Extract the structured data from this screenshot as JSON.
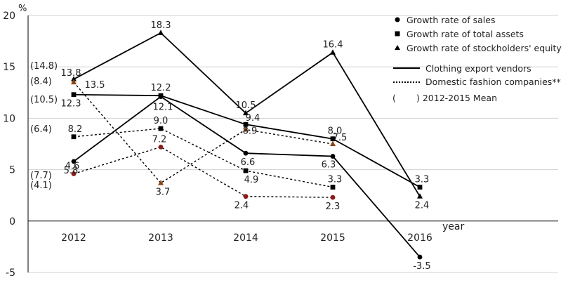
{
  "chart_data": {
    "type": "line",
    "unit_label": "%",
    "xlabel": "year",
    "x": [
      "2012",
      "2013",
      "2014",
      "2015",
      "2016"
    ],
    "ylim": [
      -5,
      20
    ],
    "yticks": [
      "20",
      "15",
      "10",
      "5",
      "0",
      "-5"
    ],
    "grid": true,
    "legend_position": "top-right",
    "markers": [
      {
        "symbol": "circle",
        "label": "Growth rate of sales"
      },
      {
        "symbol": "square",
        "label": "Growth rate of total assets"
      },
      {
        "symbol": "triangle",
        "label": "Growth rate of stockholders' equity"
      }
    ],
    "line_styles": [
      {
        "style": "solid",
        "label": "Clothing export vendors"
      },
      {
        "style": "dotted",
        "label": "Domestic fashion companies**"
      }
    ],
    "mean_note": {
      "open": "(",
      "close": ") 2012-2015 Mean"
    },
    "series": [
      {
        "group": "Clothing export vendors",
        "metric": "Growth rate of sales",
        "marker": "circle",
        "style": "solid",
        "color": "#000000",
        "values": [
          5.8,
          12.1,
          6.6,
          6.3,
          -3.5
        ],
        "labels": [
          "5.8",
          "12.1",
          "6.6",
          "6.3",
          "-3.5"
        ]
      },
      {
        "group": "Clothing export vendors",
        "metric": "Growth rate of total assets",
        "marker": "square",
        "style": "solid",
        "color": "#000000",
        "values": [
          12.3,
          12.2,
          9.4,
          8.0,
          3.3
        ],
        "labels": [
          "12.3",
          "12.2",
          "9.4",
          "8.0",
          "3.3"
        ]
      },
      {
        "group": "Clothing export vendors",
        "metric": "Growth rate of stockholders' equity",
        "marker": "triangle",
        "style": "solid",
        "color": "#000000",
        "values": [
          13.8,
          18.3,
          10.5,
          16.4,
          2.4
        ],
        "labels": [
          "13.8",
          "18.3",
          "10.5",
          "16.4",
          "2.4"
        ]
      },
      {
        "group": "Domestic fashion companies",
        "metric": "Growth rate of sales",
        "marker": "circle",
        "style": "dotted",
        "color": "#8b1a1a",
        "values": [
          4.6,
          7.2,
          2.4,
          2.3,
          null
        ],
        "labels": [
          "4.6",
          "7.2",
          "2.4",
          "2.3",
          ""
        ]
      },
      {
        "group": "Domestic fashion companies",
        "metric": "Growth rate of total assets",
        "marker": "square",
        "style": "dotted",
        "color": "#000000",
        "values": [
          8.2,
          9.0,
          4.9,
          3.3,
          null
        ],
        "labels": [
          "8.2",
          "9.0",
          "4.9",
          "3.3",
          ""
        ]
      },
      {
        "group": "Domestic fashion companies",
        "metric": "Growth rate of stockholders' equity",
        "marker": "triangle",
        "style": "dotted",
        "color": "#8b4513",
        "values": [
          13.5,
          3.7,
          8.9,
          7.5,
          null
        ],
        "labels": [
          "13.5",
          "3.7",
          "8.9",
          "7.5",
          ""
        ]
      }
    ],
    "means": [
      "(14.8)",
      "(8.4)",
      "(10.5)",
      "(6.4)",
      "(7.7)",
      "(4.1)"
    ]
  }
}
